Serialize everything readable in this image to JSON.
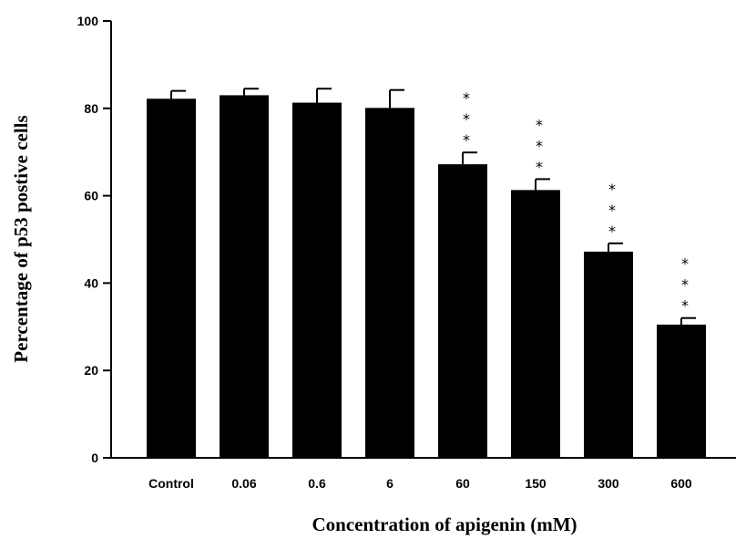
{
  "chart_data": {
    "type": "bar",
    "categories": [
      "Control",
      "0.06",
      "0.6",
      "6",
      "60",
      "150",
      "300",
      "600"
    ],
    "values": [
      82.2,
      83.0,
      81.3,
      80.1,
      67.2,
      61.3,
      47.2,
      30.5
    ],
    "errors": [
      1.8,
      1.5,
      3.2,
      4.1,
      2.7,
      2.5,
      1.9,
      1.5
    ],
    "significance": [
      "",
      "",
      "",
      "",
      "***",
      "***",
      "***",
      "***"
    ],
    "xlabel": "Concentration of apigenin (mM)",
    "ylabel": "Percentage of p53 postive cells",
    "ylim": [
      0,
      100
    ],
    "yticks": [
      0,
      20,
      40,
      60,
      80,
      100
    ],
    "bar_color": "#000000",
    "grid": false,
    "legend": "none"
  }
}
